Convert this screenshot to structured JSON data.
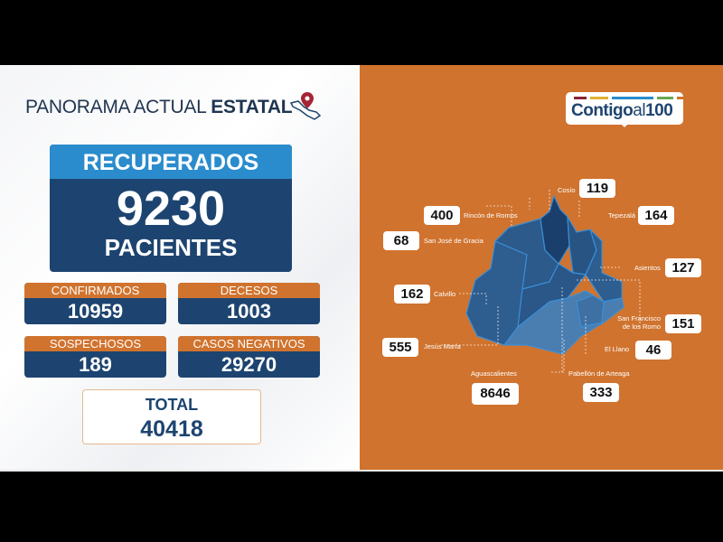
{
  "header": {
    "title_light": "PANORAMA ACTUAL ",
    "title_bold": "ESTATAL",
    "icon": "mexico-map-pin-icon"
  },
  "recuperados": {
    "label": "RECUPERADOS",
    "value": "9230",
    "unit": "PACIENTES"
  },
  "stats": [
    {
      "label": "CONFIRMADOS",
      "value": "10959"
    },
    {
      "label": "DECESOS",
      "value": "1003"
    },
    {
      "label": "SOSPECHOSOS",
      "value": "189"
    },
    {
      "label": "CASOS NEGATIVOS",
      "value": "29270"
    }
  ],
  "total": {
    "label": "TOTAL",
    "value": "40418"
  },
  "logo": {
    "bold": "Contigo",
    "light": "al",
    "num": "100",
    "bar_colors": [
      "#8b2335",
      "#e0b030",
      "#2a8ccc",
      "#6aa84f",
      "#d0732e"
    ]
  },
  "colors": {
    "orange": "#d0732e",
    "navy": "#1d4470",
    "light_blue": "#2a8ccc"
  },
  "municipalities": [
    {
      "name": "Cosío",
      "value": "119"
    },
    {
      "name": "Rincón de Romos",
      "value": "400"
    },
    {
      "name": "Tepezalá",
      "value": "164"
    },
    {
      "name": "San José de Gracia",
      "value": "68"
    },
    {
      "name": "Asientos",
      "value": "127"
    },
    {
      "name": "Calvillo",
      "value": "162"
    },
    {
      "name": "San Francisco de los Romo",
      "value": "151"
    },
    {
      "name": "Jesús María",
      "value": "555"
    },
    {
      "name": "El Llano",
      "value": "46"
    },
    {
      "name": "Aguascalientes",
      "value": "8646"
    },
    {
      "name": "Pabellón de Arteaga",
      "value": "333"
    }
  ]
}
